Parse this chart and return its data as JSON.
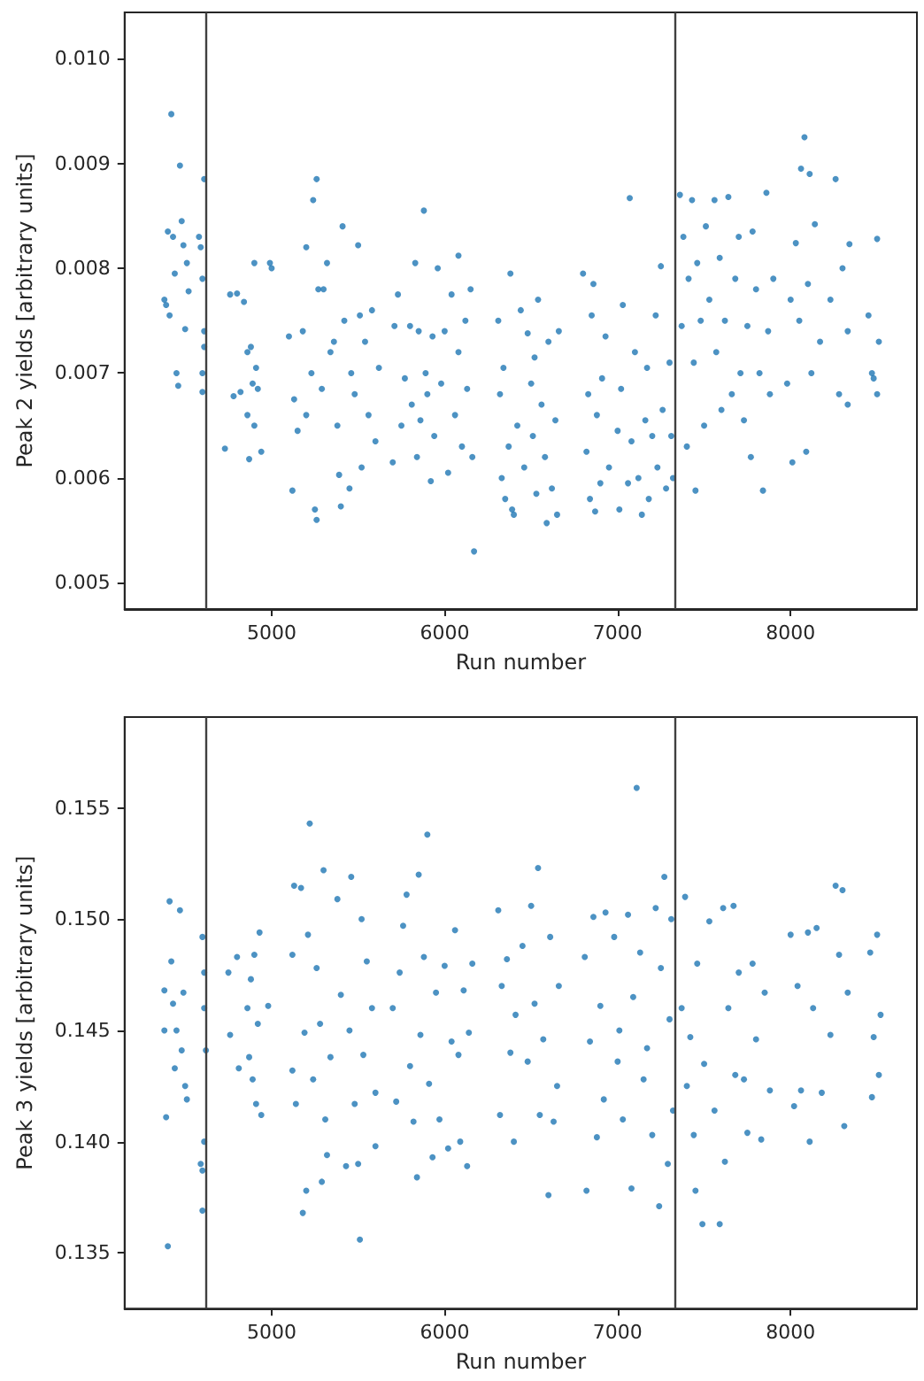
{
  "chart_data": [
    {
      "type": "scatter",
      "xlabel": "Run number",
      "ylabel": "Peak 2 yields [arbitrary units]",
      "color": "#1f77b4",
      "marker": "circle",
      "grid": false,
      "xlim": [
        4150,
        8730
      ],
      "ylim": [
        0.00475,
        0.01044
      ],
      "xticks": [
        5000,
        6000,
        7000,
        8000
      ],
      "yticks": [
        0.005,
        0.006,
        0.007,
        0.008,
        0.009,
        {
          "value": 0.01,
          "label": "0.010"
        }
      ],
      "ref_lines": [
        {
          "axis": "x",
          "value": 4620,
          "color": "#404040"
        },
        {
          "axis": "x",
          "value": 7330,
          "color": "#404040"
        }
      ],
      "x": [
        4380,
        4390,
        4400,
        4410,
        4420,
        4430,
        4440,
        4450,
        4460,
        4470,
        4480,
        4490,
        4500,
        4510,
        4520,
        4580,
        4590,
        4600,
        4600,
        4610,
        4610,
        4600,
        4610,
        4730,
        4760,
        4780,
        4800,
        4820,
        4840,
        4860,
        4860,
        4870,
        4880,
        4890,
        4900,
        4900,
        4910,
        4920,
        4940,
        4990,
        5000,
        5100,
        5120,
        5130,
        5150,
        5180,
        5200,
        5200,
        5230,
        5240,
        5250,
        5260,
        5260,
        5270,
        5290,
        5300,
        5320,
        5340,
        5360,
        5380,
        5390,
        5400,
        5410,
        5420,
        5450,
        5460,
        5480,
        5500,
        5510,
        5520,
        5540,
        5560,
        5580,
        5600,
        5620,
        5700,
        5710,
        5730,
        5750,
        5770,
        5800,
        5810,
        5830,
        5840,
        5850,
        5860,
        5880,
        5890,
        5900,
        5920,
        5930,
        5940,
        5960,
        5980,
        6000,
        6020,
        6040,
        6060,
        6080,
        6080,
        6100,
        6120,
        6130,
        6150,
        6160,
        6170,
        6310,
        6320,
        6330,
        6340,
        6350,
        6370,
        6380,
        6390,
        6400,
        6420,
        6440,
        6460,
        6480,
        6500,
        6510,
        6520,
        6530,
        6540,
        6560,
        6580,
        6590,
        6600,
        6620,
        6640,
        6650,
        6660,
        6800,
        6820,
        6830,
        6840,
        6850,
        6860,
        6870,
        6880,
        6900,
        6910,
        6930,
        6950,
        7000,
        7010,
        7020,
        7030,
        7060,
        7070,
        7080,
        7100,
        7120,
        7140,
        7160,
        7170,
        7180,
        7200,
        7220,
        7230,
        7250,
        7260,
        7280,
        7300,
        7310,
        7320,
        7360,
        7370,
        7380,
        7400,
        7410,
        7430,
        7440,
        7450,
        7460,
        7480,
        7500,
        7510,
        7530,
        7560,
        7570,
        7590,
        7600,
        7620,
        7640,
        7660,
        7680,
        7700,
        7710,
        7730,
        7750,
        7770,
        7780,
        7800,
        7820,
        7840,
        7860,
        7870,
        7880,
        7900,
        7980,
        8000,
        8010,
        8030,
        8050,
        8060,
        8080,
        8090,
        8100,
        8110,
        8120,
        8140,
        8170,
        8230,
        8260,
        8280,
        8300,
        8330,
        8330,
        8340,
        8450,
        8470,
        8480,
        8500,
        8500,
        8510
      ],
      "values": [
        0.0077,
        0.00765,
        0.00835,
        0.00755,
        0.00947,
        0.0083,
        0.00795,
        0.007,
        0.00688,
        0.00898,
        0.00845,
        0.00822,
        0.00742,
        0.00805,
        0.00778,
        0.0083,
        0.0082,
        0.0079,
        0.007,
        0.00885,
        0.0074,
        0.00682,
        0.00725,
        0.00628,
        0.00775,
        0.00678,
        0.00776,
        0.00682,
        0.00768,
        0.0072,
        0.0066,
        0.00618,
        0.00725,
        0.0069,
        0.0065,
        0.00805,
        0.00705,
        0.00685,
        0.00625,
        0.00805,
        0.008,
        0.00735,
        0.00588,
        0.00675,
        0.00645,
        0.0074,
        0.0082,
        0.0066,
        0.007,
        0.00865,
        0.0057,
        0.00885,
        0.0056,
        0.0078,
        0.00685,
        0.0078,
        0.00805,
        0.0072,
        0.0073,
        0.0065,
        0.00603,
        0.00573,
        0.0084,
        0.0075,
        0.0059,
        0.007,
        0.0068,
        0.00822,
        0.00755,
        0.0061,
        0.0073,
        0.0066,
        0.0076,
        0.00635,
        0.00705,
        0.00615,
        0.00745,
        0.00775,
        0.0065,
        0.00695,
        0.00745,
        0.0067,
        0.00805,
        0.0062,
        0.0074,
        0.00655,
        0.00855,
        0.007,
        0.0068,
        0.00597,
        0.00735,
        0.0064,
        0.008,
        0.0069,
        0.0074,
        0.00605,
        0.00775,
        0.0066,
        0.00812,
        0.0072,
        0.0063,
        0.0075,
        0.00685,
        0.0078,
        0.0062,
        0.0053,
        0.0075,
        0.0068,
        0.006,
        0.00705,
        0.0058,
        0.0063,
        0.00795,
        0.0057,
        0.00565,
        0.0065,
        0.0076,
        0.0061,
        0.00738,
        0.0069,
        0.0064,
        0.00715,
        0.00585,
        0.0077,
        0.0067,
        0.0062,
        0.00557,
        0.0073,
        0.0059,
        0.00655,
        0.00565,
        0.0074,
        0.00795,
        0.00625,
        0.0068,
        0.0058,
        0.00755,
        0.00785,
        0.00568,
        0.0066,
        0.00595,
        0.00695,
        0.00735,
        0.0061,
        0.00645,
        0.0057,
        0.00685,
        0.00765,
        0.00595,
        0.00867,
        0.00635,
        0.0072,
        0.006,
        0.00565,
        0.00655,
        0.00705,
        0.0058,
        0.0064,
        0.00755,
        0.0061,
        0.00802,
        0.00665,
        0.0059,
        0.0071,
        0.0064,
        0.006,
        0.0087,
        0.00745,
        0.0083,
        0.0063,
        0.0079,
        0.00865,
        0.0071,
        0.00588,
        0.00805,
        0.0075,
        0.0065,
        0.0084,
        0.0077,
        0.00865,
        0.0072,
        0.0081,
        0.00665,
        0.0075,
        0.00868,
        0.0068,
        0.0079,
        0.0083,
        0.007,
        0.00655,
        0.00745,
        0.0062,
        0.00835,
        0.0078,
        0.007,
        0.00588,
        0.00872,
        0.0074,
        0.0068,
        0.0079,
        0.0069,
        0.0077,
        0.00615,
        0.00824,
        0.0075,
        0.00895,
        0.00925,
        0.00625,
        0.00785,
        0.0089,
        0.007,
        0.00842,
        0.0073,
        0.0077,
        0.00885,
        0.0068,
        0.008,
        0.0074,
        0.0067,
        0.00823,
        0.00755,
        0.007,
        0.00695,
        0.00828,
        0.0068,
        0.0073
      ]
    },
    {
      "type": "scatter",
      "xlabel": "Run number",
      "ylabel": "Peak 3 yields [arbitrary units]",
      "color": "#1f77b4",
      "marker": "circle",
      "grid": false,
      "xlim": [
        4150,
        8730
      ],
      "ylim": [
        0.1325,
        0.15908
      ],
      "xticks": [
        5000,
        6000,
        7000,
        8000
      ],
      "yticks": [
        0.135,
        {
          "value": 0.14,
          "label": "0.140"
        },
        0.145,
        {
          "value": 0.15,
          "label": "0.150"
        },
        0.155
      ],
      "ref_lines": [
        {
          "axis": "x",
          "value": 4620,
          "color": "#404040"
        },
        {
          "axis": "x",
          "value": 7330,
          "color": "#404040"
        }
      ],
      "x": [
        4380,
        4380,
        4390,
        4400,
        4410,
        4420,
        4430,
        4440,
        4450,
        4470,
        4480,
        4490,
        4500,
        4510,
        4590,
        4600,
        4600,
        4610,
        4610,
        4620,
        4600,
        4610,
        4750,
        4760,
        4800,
        4810,
        4860,
        4870,
        4880,
        4890,
        4900,
        4910,
        4920,
        4930,
        4940,
        4980,
        5120,
        5120,
        5130,
        5140,
        5170,
        5180,
        5190,
        5200,
        5210,
        5220,
        5240,
        5260,
        5280,
        5290,
        5300,
        5310,
        5320,
        5340,
        5380,
        5400,
        5430,
        5450,
        5460,
        5480,
        5500,
        5510,
        5520,
        5530,
        5550,
        5580,
        5600,
        5600,
        5700,
        5720,
        5740,
        5760,
        5780,
        5800,
        5820,
        5840,
        5850,
        5860,
        5880,
        5900,
        5910,
        5930,
        5950,
        5970,
        6000,
        6020,
        6040,
        6060,
        6080,
        6090,
        6110,
        6130,
        6140,
        6160,
        6310,
        6320,
        6330,
        6360,
        6380,
        6400,
        6410,
        6450,
        6480,
        6500,
        6520,
        6540,
        6550,
        6570,
        6600,
        6610,
        6630,
        6650,
        6660,
        6810,
        6820,
        6840,
        6860,
        6880,
        6900,
        6920,
        6930,
        6980,
        7000,
        7010,
        7030,
        7060,
        7080,
        7090,
        7110,
        7130,
        7150,
        7170,
        7200,
        7220,
        7240,
        7250,
        7270,
        7290,
        7300,
        7310,
        7320,
        7370,
        7390,
        7400,
        7420,
        7440,
        7450,
        7460,
        7490,
        7500,
        7530,
        7560,
        7590,
        7610,
        7620,
        7640,
        7670,
        7680,
        7700,
        7730,
        7750,
        7780,
        7800,
        7830,
        7850,
        7880,
        8000,
        8020,
        8040,
        8060,
        8100,
        8110,
        8130,
        8150,
        8180,
        8230,
        8260,
        8280,
        8300,
        8310,
        8330,
        8460,
        8470,
        8480,
        8500,
        8510,
        8520
      ],
      "values": [
        0.1468,
        0.145,
        0.1411,
        0.1353,
        0.1508,
        0.1481,
        0.1462,
        0.1433,
        0.145,
        0.1504,
        0.1441,
        0.1467,
        0.1425,
        0.1419,
        0.139,
        0.1369,
        0.1492,
        0.14,
        0.1476,
        0.1441,
        0.1387,
        0.146,
        0.1476,
        0.1448,
        0.1483,
        0.1433,
        0.146,
        0.1438,
        0.1473,
        0.1428,
        0.1484,
        0.1417,
        0.1453,
        0.1494,
        0.1412,
        0.1461,
        0.1484,
        0.1432,
        0.1515,
        0.1417,
        0.1514,
        0.1368,
        0.1449,
        0.1378,
        0.1493,
        0.1543,
        0.1428,
        0.1478,
        0.1453,
        0.1382,
        0.1522,
        0.141,
        0.1394,
        0.1438,
        0.1509,
        0.1466,
        0.1389,
        0.145,
        0.1519,
        0.1417,
        0.139,
        0.1356,
        0.15,
        0.1439,
        0.1481,
        0.146,
        0.1398,
        0.1422,
        0.146,
        0.1418,
        0.1476,
        0.1497,
        0.1511,
        0.1434,
        0.1409,
        0.1384,
        0.152,
        0.1448,
        0.1483,
        0.1538,
        0.1426,
        0.1393,
        0.1467,
        0.141,
        0.1479,
        0.1397,
        0.1445,
        0.1495,
        0.1439,
        0.14,
        0.1468,
        0.1389,
        0.1449,
        0.148,
        0.1504,
        0.1412,
        0.147,
        0.1482,
        0.144,
        0.14,
        0.1457,
        0.1488,
        0.1436,
        0.1506,
        0.1462,
        0.1523,
        0.1412,
        0.1446,
        0.1376,
        0.1492,
        0.1409,
        0.1425,
        0.147,
        0.1483,
        0.1378,
        0.1445,
        0.1501,
        0.1402,
        0.1461,
        0.1419,
        0.1503,
        0.1492,
        0.1436,
        0.145,
        0.141,
        0.1502,
        0.1379,
        0.1465,
        0.1559,
        0.1485,
        0.1428,
        0.1442,
        0.1403,
        0.1505,
        0.1371,
        0.1478,
        0.1519,
        0.139,
        0.1455,
        0.15,
        0.1414,
        0.146,
        0.151,
        0.1425,
        0.1447,
        0.1403,
        0.1378,
        0.148,
        0.1363,
        0.1435,
        0.1499,
        0.1414,
        0.1363,
        0.1505,
        0.1391,
        0.146,
        0.1506,
        0.143,
        0.1476,
        0.1428,
        0.1404,
        0.148,
        0.1446,
        0.1401,
        0.1467,
        0.1423,
        0.1493,
        0.1416,
        0.147,
        0.1423,
        0.1494,
        0.14,
        0.146,
        0.1496,
        0.1422,
        0.1448,
        0.1515,
        0.1484,
        0.1513,
        0.1407,
        0.1467,
        0.1485,
        0.142,
        0.1447,
        0.1493,
        0.143,
        0.1457
      ]
    }
  ]
}
